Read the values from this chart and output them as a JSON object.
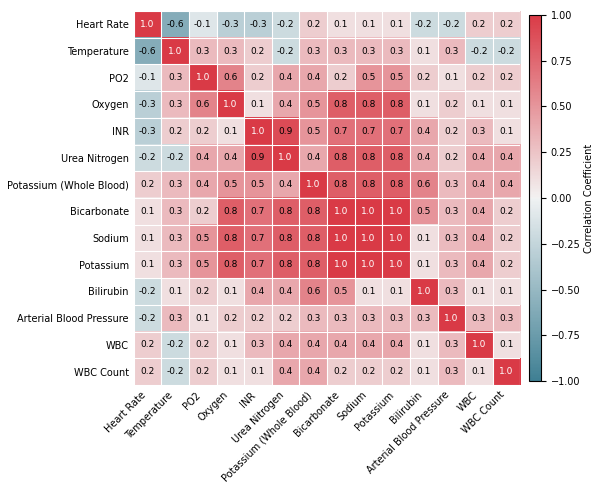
{
  "labels": [
    "Heart Rate",
    "Temperature",
    "PO2",
    "Oxygen",
    "INR",
    "Urea Nitrogen",
    "Potassium (Whole Blood)",
    "Bicarbonate",
    "Sodium",
    "Potassium",
    "Bilirubin",
    "Arterial Blood Pressure",
    "WBC",
    "WBC Count"
  ],
  "matrix": [
    [
      1.0,
      -0.6,
      -0.1,
      -0.3,
      -0.3,
      -0.2,
      0.2,
      0.1,
      0.1,
      0.1,
      -0.2,
      -0.2,
      0.2,
      0.2
    ],
    [
      -0.6,
      1.0,
      0.3,
      0.3,
      0.2,
      -0.2,
      0.3,
      0.3,
      0.3,
      0.3,
      0.1,
      0.3,
      -0.2,
      -0.2
    ],
    [
      -0.1,
      0.3,
      1.0,
      0.6,
      0.2,
      0.4,
      0.4,
      0.2,
      0.5,
      0.5,
      0.2,
      0.1,
      0.2,
      0.2
    ],
    [
      -0.3,
      0.3,
      0.6,
      1.0,
      0.1,
      0.4,
      0.5,
      0.8,
      0.8,
      0.8,
      0.1,
      0.2,
      0.1,
      0.1
    ],
    [
      -0.3,
      0.2,
      0.2,
      0.1,
      1.0,
      0.9,
      0.5,
      0.7,
      0.7,
      0.7,
      0.4,
      0.2,
      0.3,
      0.1
    ],
    [
      -0.2,
      -0.2,
      0.4,
      0.4,
      0.9,
      1.0,
      0.4,
      0.8,
      0.8,
      0.8,
      0.4,
      0.2,
      0.4,
      0.4
    ],
    [
      0.2,
      0.3,
      0.4,
      0.5,
      0.5,
      0.4,
      1.0,
      0.8,
      0.8,
      0.8,
      0.6,
      0.3,
      0.4,
      0.4
    ],
    [
      0.1,
      0.3,
      0.2,
      0.8,
      0.7,
      0.8,
      0.8,
      1.0,
      1.0,
      1.0,
      0.5,
      0.3,
      0.4,
      0.2
    ],
    [
      0.1,
      0.3,
      0.5,
      0.8,
      0.7,
      0.8,
      0.8,
      1.0,
      1.0,
      1.0,
      0.1,
      0.3,
      0.4,
      0.2
    ],
    [
      0.1,
      0.3,
      0.5,
      0.8,
      0.7,
      0.8,
      0.8,
      1.0,
      1.0,
      1.0,
      0.1,
      0.3,
      0.4,
      0.2
    ],
    [
      -0.2,
      0.1,
      0.2,
      0.1,
      0.4,
      0.4,
      0.6,
      0.5,
      0.1,
      0.1,
      1.0,
      0.3,
      0.1,
      0.1
    ],
    [
      -0.2,
      0.3,
      0.1,
      0.2,
      0.2,
      0.2,
      0.3,
      0.3,
      0.3,
      0.3,
      0.3,
      1.0,
      0.3,
      0.3
    ],
    [
      0.2,
      -0.2,
      0.2,
      0.1,
      0.3,
      0.4,
      0.4,
      0.4,
      0.4,
      0.4,
      0.1,
      0.3,
      1.0,
      0.1
    ],
    [
      0.2,
      -0.2,
      0.2,
      0.1,
      0.1,
      0.4,
      0.4,
      0.2,
      0.2,
      0.2,
      0.1,
      0.3,
      0.1,
      1.0
    ]
  ],
  "colorbar_label": "Correlation Coefficient",
  "vmin": -1.0,
  "vmax": 1.0,
  "figsize": [
    6.0,
    4.9
  ],
  "dpi": 100,
  "fontsize_annot": 6.5,
  "fontsize_ticks": 7,
  "fontsize_cbar": 7,
  "cbar_ticks": [
    -1.0,
    -0.75,
    -0.5,
    -0.25,
    0.0,
    0.25,
    0.5,
    0.75,
    1.0
  ]
}
